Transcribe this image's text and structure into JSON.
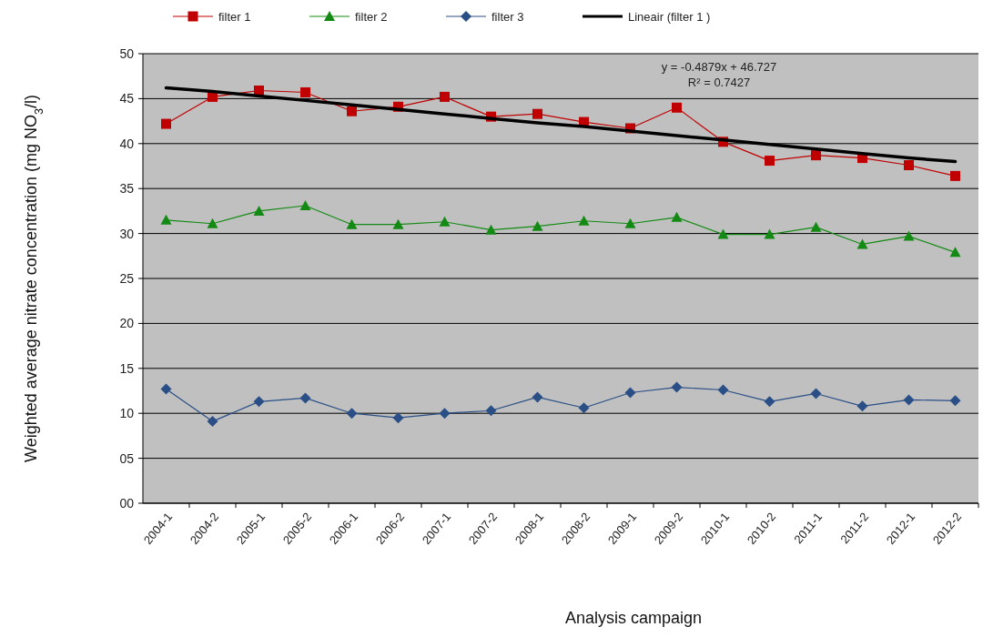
{
  "chart_data": {
    "type": "line",
    "xlabel": "Analysis campaign",
    "ylabel": "Weighted average nitrate concentration (mg NO$_{3}$/l)",
    "categories": [
      "2004-1",
      "2004-2",
      "2005-1",
      "2005-2",
      "2006-1",
      "2006-2",
      "2007-1",
      "2007-2",
      "2008-1",
      "2008-2",
      "2009-1",
      "2009-2",
      "2010-1",
      "2010-2",
      "2011-1",
      "2011-2",
      "2012-1",
      "2012-2"
    ],
    "series": [
      {
        "name": "filter 1",
        "color": "#c00000",
        "marker": "square",
        "values": [
          42.2,
          45.2,
          45.9,
          45.7,
          43.6,
          44.1,
          45.2,
          43.0,
          43.3,
          42.4,
          41.7,
          44.0,
          40.2,
          38.1,
          38.7,
          38.4,
          37.6,
          36.4
        ]
      },
      {
        "name": "filter 2",
        "color": "#138a13",
        "marker": "triangle",
        "values": [
          31.5,
          31.1,
          32.5,
          33.1,
          31.0,
          31.0,
          31.3,
          30.4,
          30.8,
          31.4,
          31.1,
          31.8,
          29.9,
          29.9,
          30.7,
          28.8,
          29.7,
          27.9
        ]
      },
      {
        "name": "filter 3",
        "color": "#2a4f86",
        "marker": "diamond",
        "values": [
          12.7,
          9.1,
          11.3,
          11.7,
          10.0,
          9.5,
          10.0,
          10.3,
          11.8,
          10.6,
          12.3,
          12.9,
          12.6,
          11.3,
          12.2,
          10.8,
          11.5,
          11.4
        ]
      },
      {
        "name": "Lineair (filter 1 )",
        "color": "#000000",
        "marker": "none",
        "values": [
          46.2,
          45.8,
          45.3,
          44.8,
          44.3,
          43.8,
          43.3,
          42.8,
          42.3,
          41.9,
          41.4,
          40.9,
          40.4,
          39.9,
          39.4,
          38.9,
          38.4,
          38.0
        ]
      }
    ],
    "ylim": [
      0,
      50
    ],
    "yticks": [
      {
        "value": 0,
        "label": "00"
      },
      {
        "value": 5,
        "label": "05"
      },
      10,
      15,
      20,
      25,
      30,
      35,
      40,
      45,
      50
    ],
    "grid": "y",
    "legend": "top",
    "annotations": [
      "y = -0.4879x  + 46.727",
      "R² = 0.7427"
    ]
  }
}
